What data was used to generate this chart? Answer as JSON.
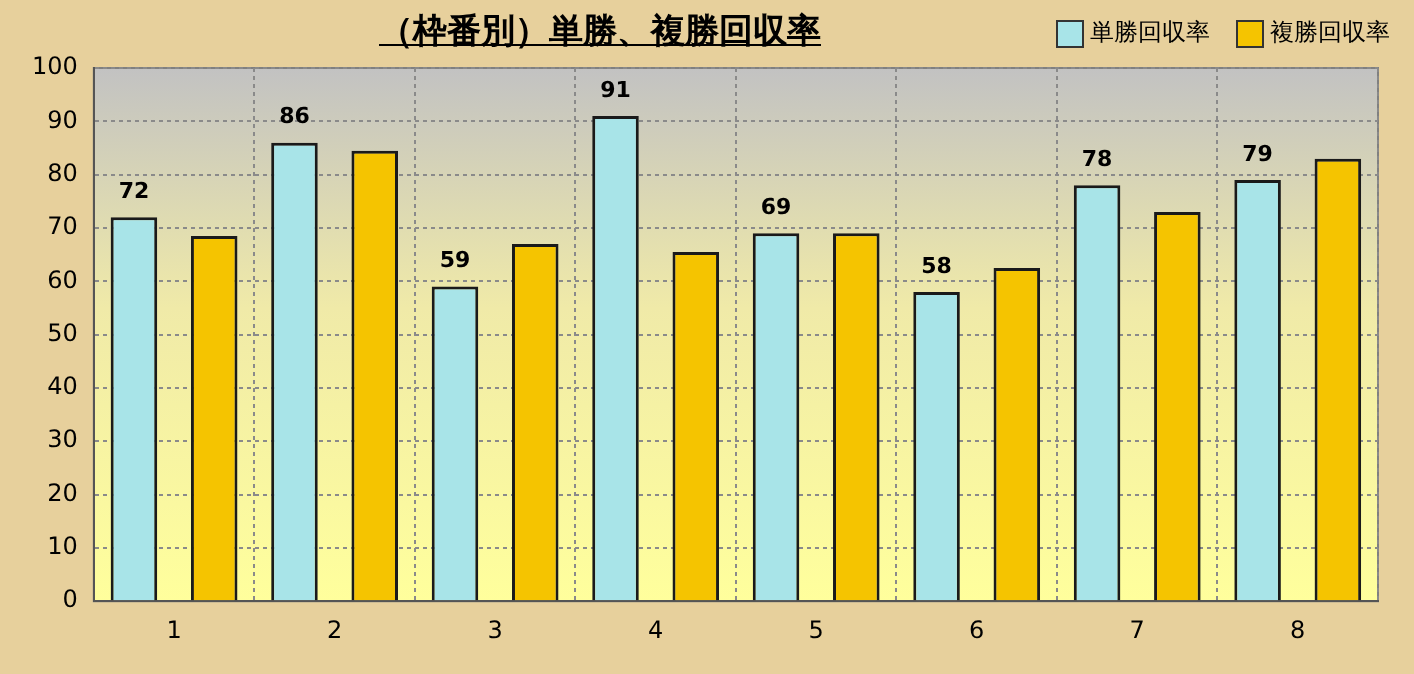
{
  "chart_data": {
    "type": "bar",
    "title": "（枠番別）単勝、複勝回収率",
    "categories": [
      "1",
      "2",
      "3",
      "4",
      "5",
      "6",
      "7",
      "8"
    ],
    "series": [
      {
        "name": "単勝回収率",
        "color": "#a8e4e8",
        "values": [
          72,
          86,
          59,
          91,
          69,
          58,
          78,
          79
        ],
        "value_labels": [
          "72",
          "86",
          "59",
          "91",
          "69",
          "58",
          "78",
          "79"
        ]
      },
      {
        "name": "複勝回収率",
        "color": "#f5c400",
        "values": [
          68.5,
          84.5,
          67,
          65.5,
          69,
          62.5,
          73,
          83
        ]
      }
    ],
    "ylim": [
      0,
      100
    ],
    "yticks": [
      0,
      10,
      20,
      30,
      40,
      50,
      60,
      70,
      80,
      90,
      100
    ],
    "grid": true,
    "legend": "top right"
  }
}
